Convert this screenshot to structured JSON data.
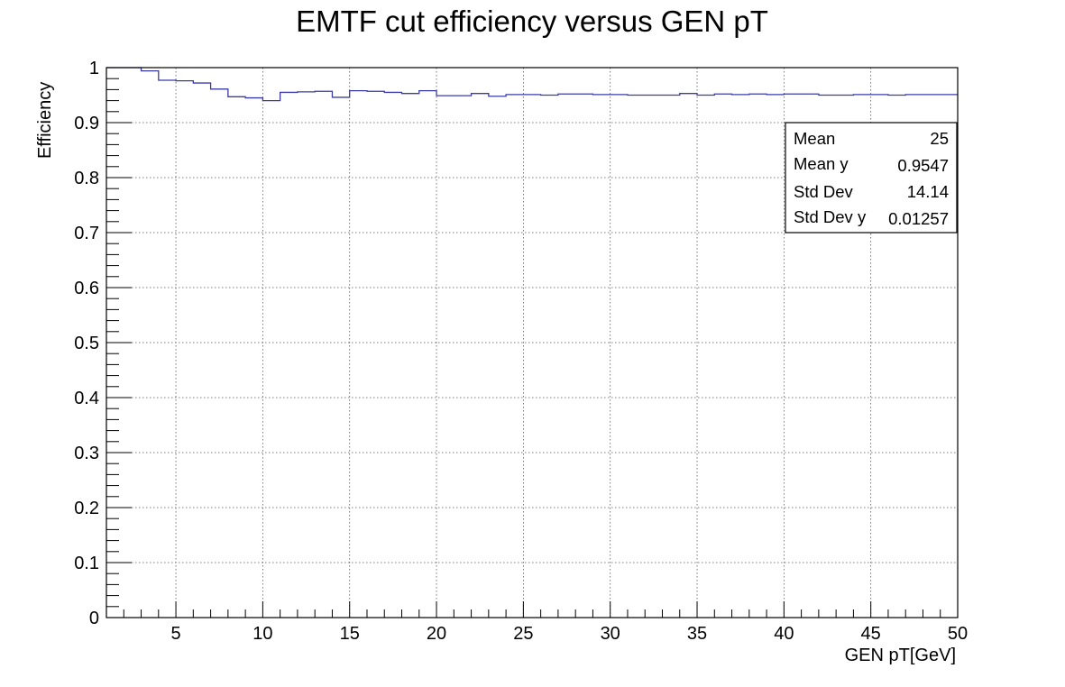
{
  "chart_data": {
    "type": "line",
    "title": "EMTF cut efficiency versus GEN pT",
    "xlabel": "GEN pT[GeV]",
    "ylabel": "Efficiency",
    "xlim": [
      1,
      50
    ],
    "ylim": [
      0,
      1
    ],
    "x_ticks": [
      5,
      10,
      15,
      20,
      25,
      30,
      35,
      40,
      45,
      50
    ],
    "y_ticks": [
      0,
      0.1,
      0.2,
      0.3,
      0.4,
      0.5,
      0.6,
      0.7,
      0.8,
      0.9,
      1
    ],
    "x_tick_labels": [
      "5",
      "10",
      "15",
      "20",
      "25",
      "30",
      "35",
      "40",
      "45",
      "50"
    ],
    "y_tick_labels": [
      "0",
      "0.1",
      "0.2",
      "0.3",
      "0.4",
      "0.5",
      "0.6",
      "0.7",
      "0.8",
      "0.9",
      "1"
    ],
    "grid": true,
    "line_color": "#3b3ba8",
    "series": [
      {
        "bin_edges": [
          1,
          2,
          3,
          4,
          5,
          6,
          7,
          8,
          9,
          10,
          11,
          12,
          13,
          14,
          15,
          16,
          17,
          18,
          19,
          20,
          21,
          22,
          23,
          24,
          25,
          26,
          27,
          28,
          29,
          30,
          31,
          32,
          33,
          34,
          35,
          36,
          37,
          38,
          39,
          40,
          41,
          42,
          43,
          44,
          45,
          46,
          47,
          48,
          49,
          50
        ],
        "values": [
          1.0,
          1.0,
          0.994,
          0.977,
          0.976,
          0.972,
          0.961,
          0.947,
          0.945,
          0.94,
          0.955,
          0.956,
          0.957,
          0.946,
          0.958,
          0.957,
          0.955,
          0.953,
          0.958,
          0.949,
          0.949,
          0.953,
          0.948,
          0.951,
          0.951,
          0.95,
          0.952,
          0.952,
          0.951,
          0.951,
          0.95,
          0.95,
          0.95,
          0.953,
          0.95,
          0.952,
          0.951,
          0.952,
          0.951,
          0.952,
          0.952,
          0.95,
          0.95,
          0.951,
          0.951,
          0.95,
          0.951,
          0.951,
          0.951
        ]
      }
    ],
    "stats_box": {
      "position": "top-right",
      "rows": [
        {
          "label": "Mean",
          "value": "25"
        },
        {
          "label": "Mean y",
          "value": "0.9547"
        },
        {
          "label": "Std Dev",
          "value": "14.14"
        },
        {
          "label": "Std Dev y",
          "value": "0.01257"
        }
      ]
    }
  }
}
